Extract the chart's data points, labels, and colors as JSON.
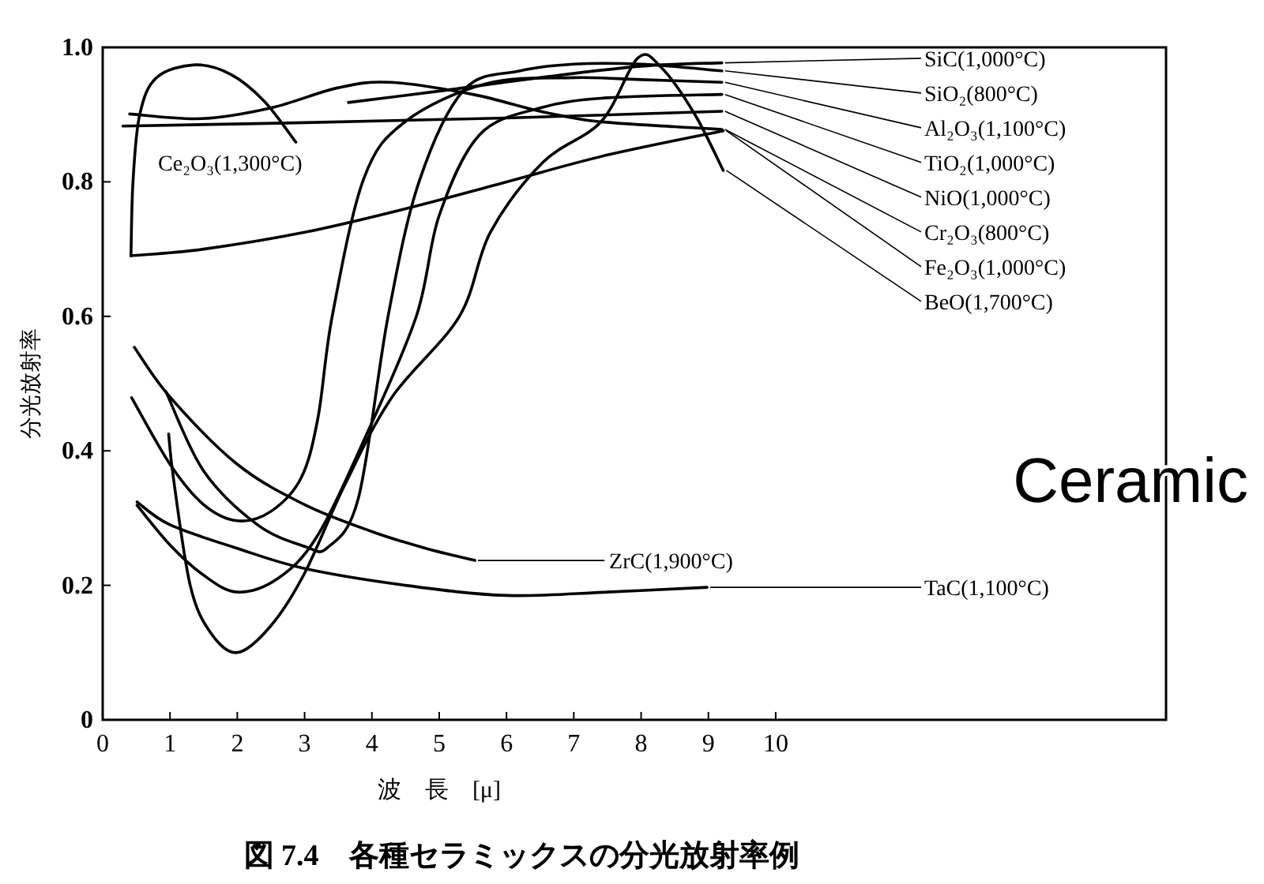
{
  "chart_data": {
    "type": "line",
    "title": "図 7.4　各種セラミックスの分光放射率例",
    "xlabel": "波　長　[μ]",
    "ylabel": "分光放射率",
    "annotations": [
      "Ceramic"
    ],
    "xlim": [
      0,
      15.8
    ],
    "ylim": [
      0,
      1
    ],
    "xticks": [
      0,
      1,
      2,
      3,
      4,
      5,
      6,
      7,
      8,
      9,
      10
    ],
    "yticks": [
      0,
      0.2,
      0.4,
      0.6,
      0.8,
      {
        "value": 1,
        "label": "1.0"
      }
    ],
    "grid": false,
    "line_style": "solid",
    "marker": "none",
    "series": [
      {
        "name": "SiC(1,000°C)",
        "color": "#000000",
        "x": [
          3.65,
          5,
          6.5,
          8,
          9.2
        ],
        "values": [
          0.918,
          0.935,
          0.955,
          0.972,
          0.977
        ]
      },
      {
        "name": "SiO₂(800°C)",
        "color": "#000000",
        "x": [
          0.94,
          1.5,
          2.3,
          3.0,
          3.34,
          3.8,
          4.24,
          4.7,
          5.37,
          6.2,
          7,
          8,
          9.2
        ],
        "values": [
          0.488,
          0.37,
          0.29,
          0.258,
          0.256,
          0.33,
          0.6,
          0.8,
          0.937,
          0.965,
          0.975,
          0.975,
          0.965
        ]
      },
      {
        "name": "Al₂O₃(1,100°C)",
        "color": "#000000",
        "x": [
          0.43,
          1,
          1.5,
          2.0,
          2.5,
          2.95,
          3.2,
          3.41,
          3.88,
          4.5,
          5.7,
          7,
          8,
          9.2
        ],
        "values": [
          0.479,
          0.38,
          0.32,
          0.296,
          0.31,
          0.36,
          0.45,
          0.6,
          0.805,
          0.89,
          0.946,
          0.955,
          0.952,
          0.948
        ]
      },
      {
        "name": "TiO₂(1,000°C)",
        "color": "#000000",
        "x": [
          0.51,
          1,
          1.5,
          2,
          2.6,
          3.18,
          3.9,
          4.66,
          5.0,
          5.6,
          6.5,
          7.5,
          9.2
        ],
        "values": [
          0.319,
          0.26,
          0.215,
          0.19,
          0.21,
          0.272,
          0.42,
          0.6,
          0.75,
          0.87,
          0.91,
          0.925,
          0.93
        ]
      },
      {
        "name": "NiO(1,000°C)",
        "color": "#000000",
        "x": [
          0.3,
          3,
          6,
          9.2
        ],
        "values": [
          0.883,
          0.888,
          0.895,
          0.905
        ]
      },
      {
        "name": "Cr₂O₃(800°C)",
        "color": "#000000",
        "x": [
          0.4,
          1.46,
          2.5,
          3.5,
          4.28,
          5.5,
          6.5,
          7.34,
          8.5,
          9.2
        ],
        "values": [
          0.901,
          0.894,
          0.91,
          0.94,
          0.948,
          0.93,
          0.905,
          0.89,
          0.882,
          0.878
        ]
      },
      {
        "name": "Fe₂O₃(1,000°C)",
        "color": "#000000",
        "x": [
          0.42,
          1.5,
          3,
          4.5,
          6,
          7.5,
          9.22
        ],
        "values": [
          0.69,
          0.7,
          0.725,
          0.76,
          0.8,
          0.84,
          0.876
        ]
      },
      {
        "name": "BeO(1,700°C)",
        "color": "#000000",
        "x": [
          0.98,
          1.05,
          1.3,
          1.6,
          2.0,
          2.5,
          3.0,
          3.6,
          4.3,
          5.3,
          5.76,
          6.54,
          7.41,
          7.95,
          8.3,
          8.8,
          9.22
        ],
        "values": [
          0.425,
          0.36,
          0.2,
          0.13,
          0.1,
          0.14,
          0.218,
          0.35,
          0.48,
          0.6,
          0.725,
          0.829,
          0.89,
          0.984,
          0.97,
          0.9,
          0.817
        ]
      },
      {
        "name": "Ce₂O₃(1,300°C)",
        "color": "#000000",
        "x": [
          0.42,
          0.45,
          0.55,
          0.8,
          1.37,
          1.9,
          2.4,
          2.87
        ],
        "values": [
          0.69,
          0.8,
          0.9,
          0.955,
          0.974,
          0.96,
          0.92,
          0.859
        ]
      },
      {
        "name": "ZrC(1,900°C)",
        "color": "#000000",
        "x": [
          0.47,
          1,
          2,
          3,
          4,
          4.8,
          5.53
        ],
        "values": [
          0.554,
          0.48,
          0.38,
          0.32,
          0.28,
          0.255,
          0.237
        ]
      },
      {
        "name": "TaC(1,100°C)",
        "color": "#000000",
        "x": [
          0.51,
          1,
          2,
          3,
          4.5,
          6,
          7.5,
          8.98
        ],
        "values": [
          0.324,
          0.29,
          0.255,
          0.225,
          0.2,
          0.185,
          0.19,
          0.197
        ]
      }
    ]
  }
}
